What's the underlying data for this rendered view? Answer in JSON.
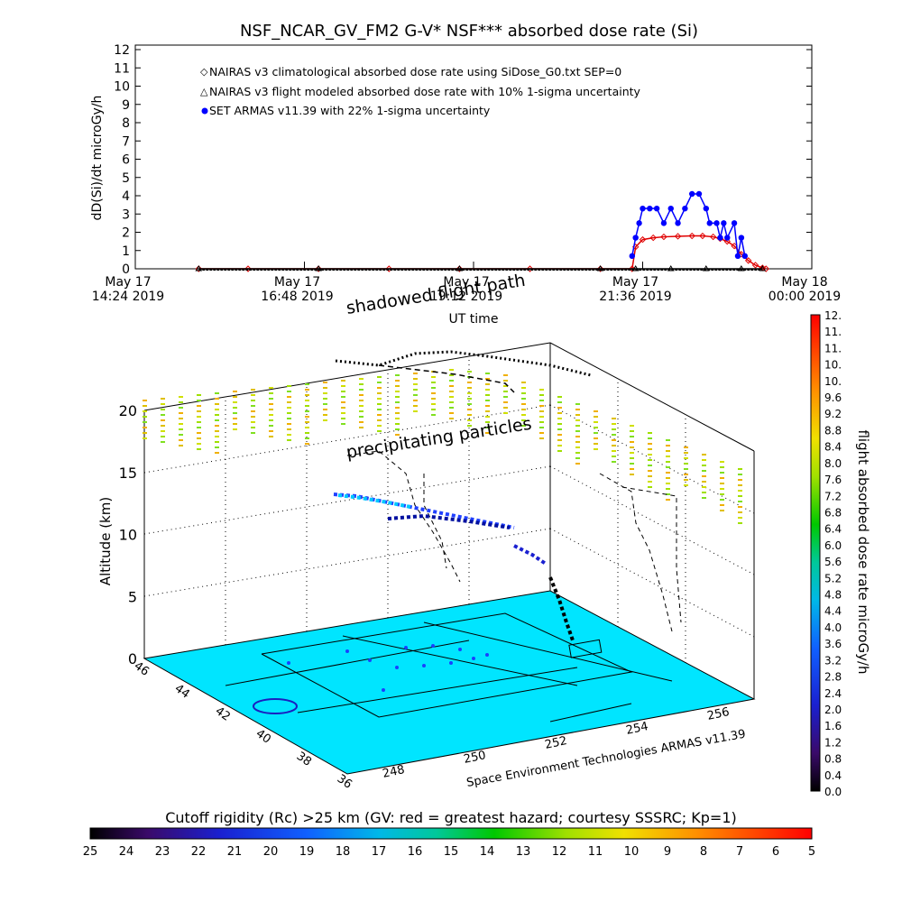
{
  "title": "NSF_NCAR_GV_FM2 G-V* NSF*** absorbed dose rate (Si)",
  "chart_data": [
    {
      "type": "scatter",
      "title": "NSF_NCAR_GV_FM2 G-V* NSF*** absorbed dose rate (Si)",
      "ylabel": "dD(Si)/dt microGy/h",
      "xlabel": "UT time",
      "ylim": [
        0,
        12
      ],
      "yticks": [
        "0",
        "1",
        "2",
        "3",
        "4",
        "5",
        "6",
        "7",
        "8",
        "9",
        "10",
        "11",
        "12"
      ],
      "xticks": [
        {
          "line1": "May 17",
          "line2": "14:24 2019"
        },
        {
          "line1": "May 17",
          "line2": "16:48 2019"
        },
        {
          "line1": "May 17",
          "line2": "19:12 2019"
        },
        {
          "line1": "May 17",
          "line2": "21:36 2019"
        },
        {
          "line1": "May 18",
          "line2": "00:00 2019"
        }
      ],
      "xlim_hours": [
        14.4,
        24.0
      ],
      "grid": false,
      "legend_position": "top-left",
      "series": [
        {
          "name": "NAIRAS v3 climatological absorbed dose rate using SiDose_G0.txt SEP=0",
          "color": "#e00000",
          "marker": "diamond",
          "points": [
            [
              15.3,
              0
            ],
            [
              16.0,
              0
            ],
            [
              17.0,
              0
            ],
            [
              18.0,
              0
            ],
            [
              19.0,
              0
            ],
            [
              20.0,
              0
            ],
            [
              21.0,
              0
            ],
            [
              21.45,
              0
            ],
            [
              21.5,
              1.2
            ],
            [
              21.6,
              1.6
            ],
            [
              21.75,
              1.7
            ],
            [
              21.9,
              1.75
            ],
            [
              22.1,
              1.78
            ],
            [
              22.3,
              1.8
            ],
            [
              22.45,
              1.8
            ],
            [
              22.6,
              1.75
            ],
            [
              22.7,
              1.65
            ],
            [
              22.8,
              1.5
            ],
            [
              22.9,
              1.25
            ],
            [
              23.0,
              0.8
            ],
            [
              23.1,
              0.45
            ],
            [
              23.2,
              0.2
            ],
            [
              23.3,
              0.05
            ],
            [
              23.35,
              0
            ]
          ]
        },
        {
          "name": "NAIRAS v3 flight modeled absorbed dose rate with 10% 1-sigma uncertainty",
          "color": "#000000",
          "marker": "triangle",
          "points": [
            [
              15.3,
              0
            ],
            [
              17.0,
              0
            ],
            [
              19.0,
              0
            ],
            [
              21.0,
              0
            ],
            [
              21.5,
              0
            ],
            [
              22.0,
              0
            ],
            [
              22.5,
              0
            ],
            [
              23.0,
              0
            ],
            [
              23.3,
              0
            ]
          ]
        },
        {
          "name": "SET ARMAS v11.39 with 22% 1-sigma uncertainty",
          "color": "#0000ff",
          "marker": "circle",
          "points": [
            [
              21.45,
              0.7
            ],
            [
              21.5,
              1.7
            ],
            [
              21.55,
              2.5
            ],
            [
              21.6,
              3.3
            ],
            [
              21.7,
              3.3
            ],
            [
              21.8,
              3.3
            ],
            [
              21.9,
              2.5
            ],
            [
              22.0,
              3.3
            ],
            [
              22.1,
              2.5
            ],
            [
              22.2,
              3.3
            ],
            [
              22.3,
              4.1
            ],
            [
              22.4,
              4.1
            ],
            [
              22.5,
              3.3
            ],
            [
              22.55,
              2.5
            ],
            [
              22.65,
              2.5
            ],
            [
              22.7,
              1.7
            ],
            [
              22.75,
              2.5
            ],
            [
              22.8,
              1.7
            ],
            [
              22.9,
              2.5
            ],
            [
              22.95,
              0.7
            ],
            [
              23.0,
              1.7
            ],
            [
              23.05,
              0.7
            ]
          ]
        }
      ]
    },
    {
      "type": "scatter",
      "title": "3-D flight path of absorbed dose rate",
      "zlabel": "Altitude (km)",
      "zlim": [
        0,
        22
      ],
      "zticks": [
        "0",
        "5",
        "10",
        "15",
        "20"
      ],
      "lat_ticks": [
        "46",
        "44",
        "42",
        "40",
        "38",
        "36"
      ],
      "lon_ticks": [
        "248",
        "250",
        "252",
        "254",
        "256"
      ],
      "annotations": [
        "shadowed flight path",
        "precipitating particles"
      ],
      "credit": "Space Environment Technologies ARMAS v11.39"
    }
  ],
  "colorbar_right": {
    "label": "flight absorbed dose rate microGy/h",
    "ticks": [
      "0.0",
      "0.4",
      "0.8",
      "1.2",
      "1.6",
      "2.0",
      "2.4",
      "2.8",
      "3.2",
      "3.6",
      "4.0",
      "4.4",
      "4.8",
      "5.2",
      "5.6",
      "6.0",
      "6.4",
      "6.8",
      "7.2",
      "7.6",
      "8.0",
      "8.4",
      "8.8",
      "9.2",
      "9.6",
      "10.",
      "10.",
      "11.",
      "11.",
      "12."
    ]
  },
  "colorbar_bottom": {
    "label": "Cutoff rigidity (Rc) >25 km (GV: red = greatest hazard; courtesy SSSRC; Kp=1)",
    "ticks": [
      "25",
      "24",
      "23",
      "22",
      "21",
      "20",
      "19",
      "18",
      "17",
      "16",
      "15",
      "14",
      "13",
      "12",
      "11",
      "10",
      "9",
      "8",
      "7",
      "6",
      "5"
    ]
  },
  "colors": {
    "ground": "#00e5ff",
    "panel_lines": "#000000"
  }
}
